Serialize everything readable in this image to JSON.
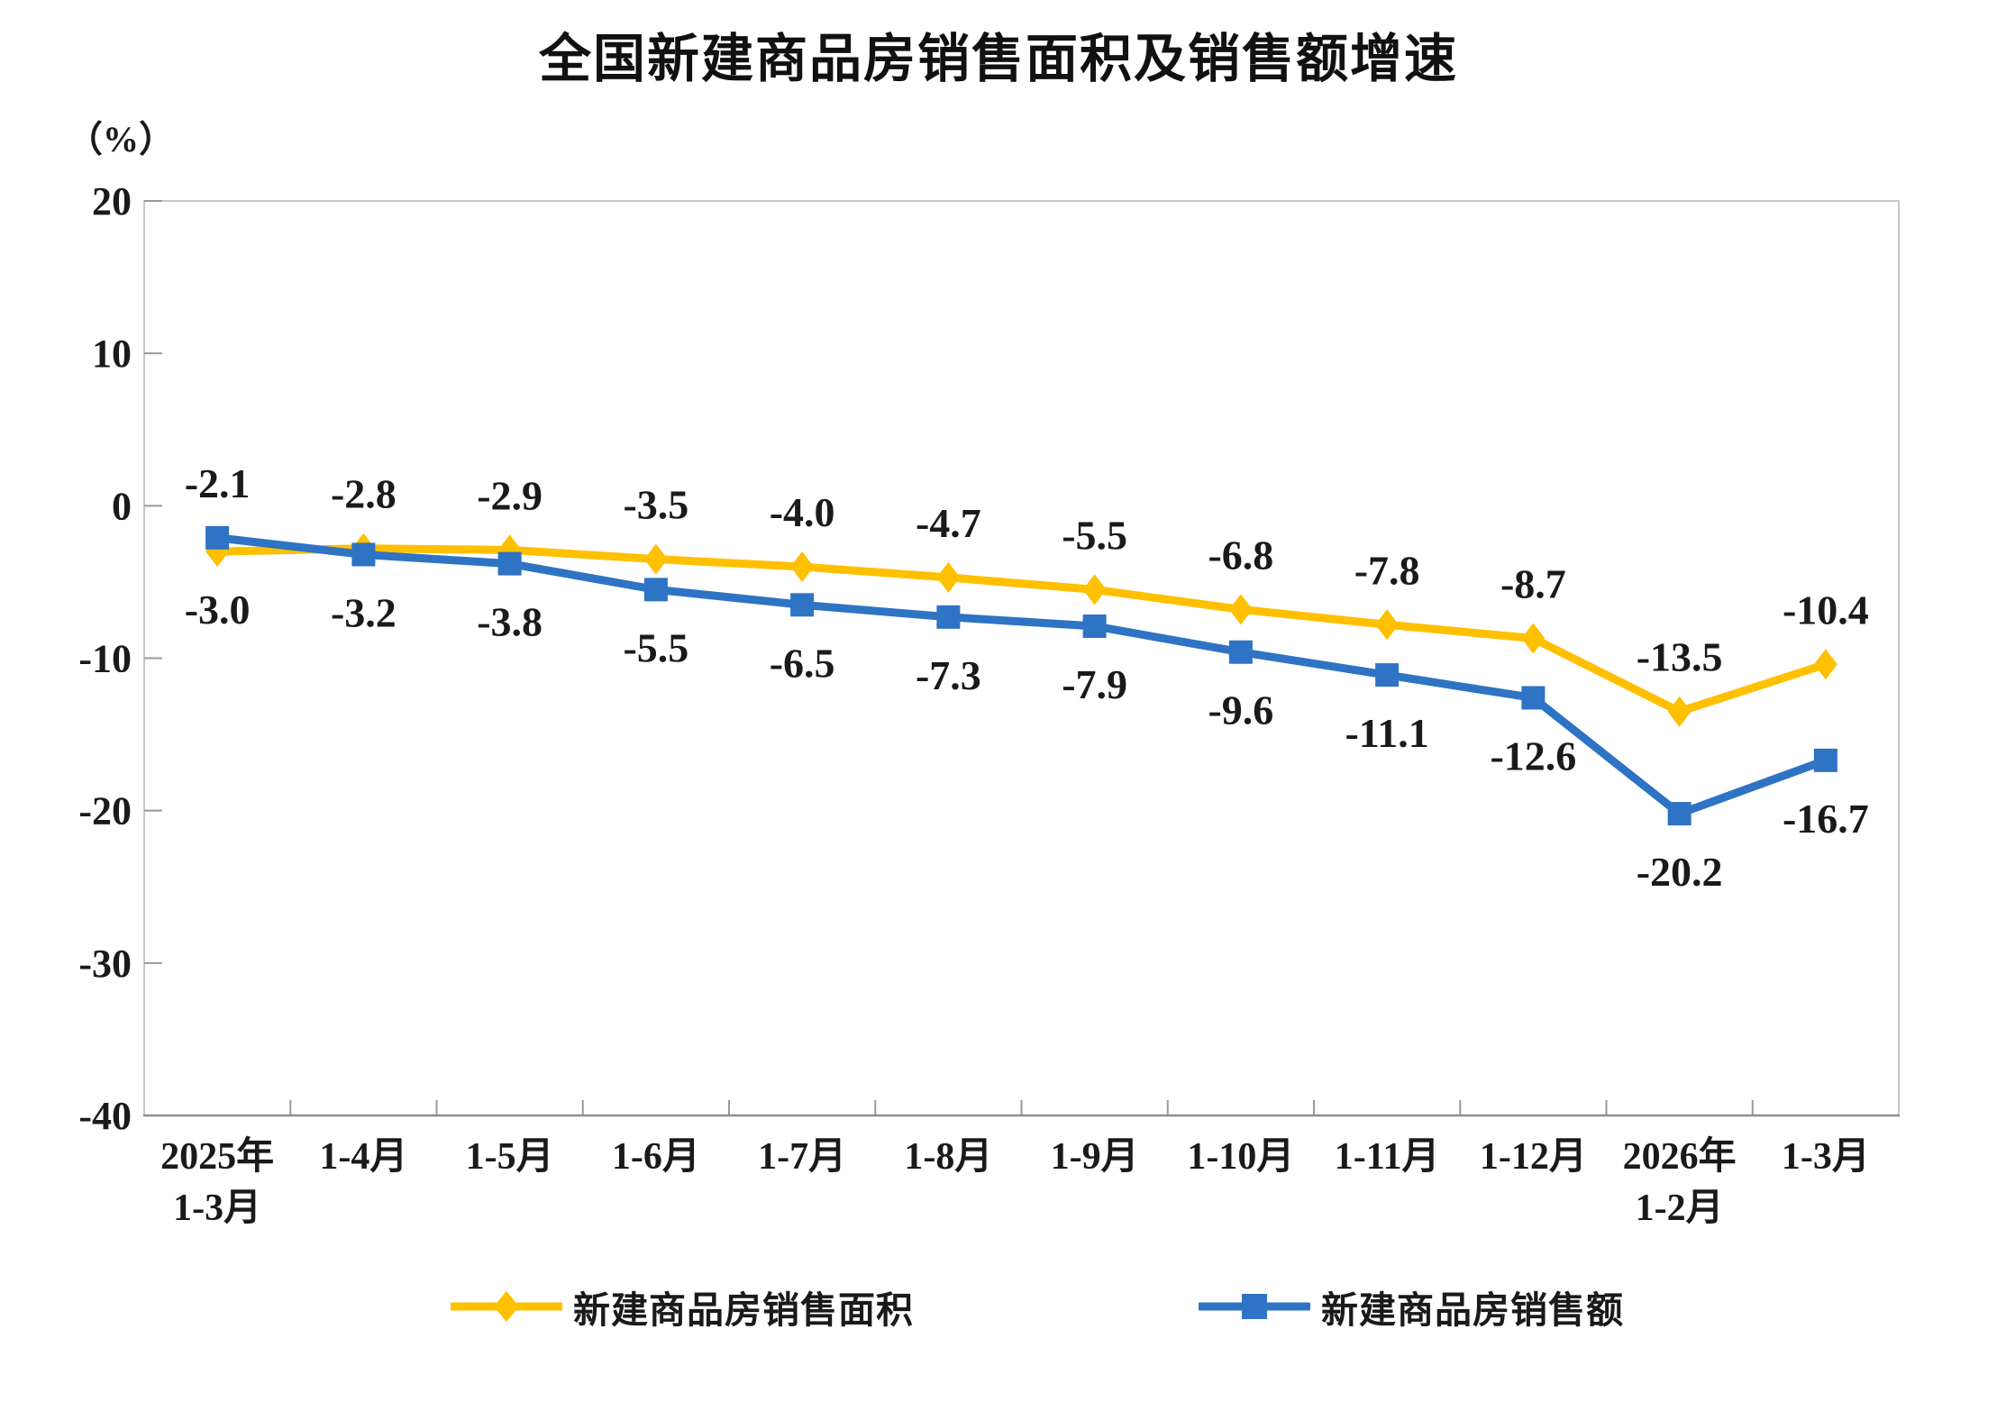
{
  "title": "全国新建商品房销售面积及销售额增速",
  "chart_data": {
    "type": "line",
    "unit_label": "（%）",
    "categories": [
      [
        "2025年",
        "1-3月"
      ],
      [
        "1-4月"
      ],
      [
        "1-5月"
      ],
      [
        "1-6月"
      ],
      [
        "1-7月"
      ],
      [
        "1-8月"
      ],
      [
        "1-9月"
      ],
      [
        "1-10月"
      ],
      [
        "1-11月"
      ],
      [
        "1-12月"
      ],
      [
        "2026年",
        "1-2月"
      ],
      [
        "1-3月"
      ]
    ],
    "y_ticks": [
      20,
      10,
      0,
      -10,
      -20,
      -30,
      -40
    ],
    "ylim": [
      -40,
      20
    ],
    "grid": false,
    "legend_position": "bottom",
    "series": [
      {
        "name": "新建商品房销售面积",
        "marker": "diamond",
        "color": "#FFC000",
        "values": [
          -3.0,
          -2.8,
          -2.9,
          -3.5,
          -4.0,
          -4.7,
          -5.5,
          -6.8,
          -7.8,
          -8.7,
          -13.5,
          -10.4
        ]
      },
      {
        "name": "新建商品房销售额",
        "marker": "square",
        "color": "#2E73C4",
        "values": [
          -2.1,
          -3.2,
          -3.8,
          -5.5,
          -6.5,
          -7.3,
          -7.9,
          -9.6,
          -11.1,
          -12.6,
          -20.2,
          -16.7
        ]
      }
    ],
    "colors": {
      "plot_border": "#c9c9c9",
      "bottom_axis": "#8f8f8f",
      "tick": "#999999",
      "tick_label": "#1a1a1a",
      "data_label": "#1a1a1a"
    }
  }
}
